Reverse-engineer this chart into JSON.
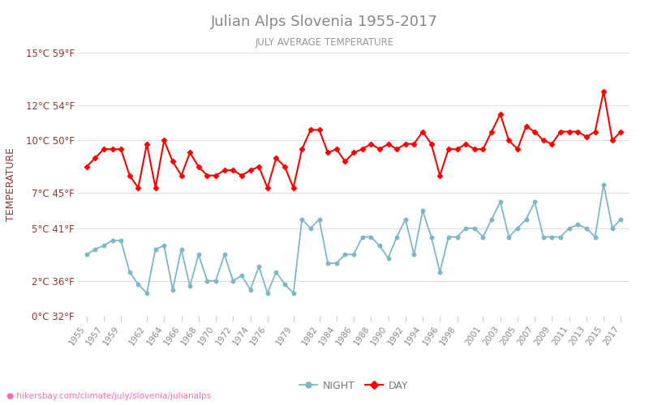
{
  "title": "Julian Alps Slovenia 1955-2017",
  "subtitle": "JULY AVERAGE TEMPERATURE",
  "ylabel": "TEMPERATURE",
  "footer": "hikersbay.com/climate/july/slovenia/julianalps",
  "title_color": "#888888",
  "subtitle_color": "#888888",
  "ylabel_color": "#993333",
  "background_color": "#ffffff",
  "grid_color": "#dddddd",
  "years": [
    1955,
    1956,
    1957,
    1958,
    1959,
    1960,
    1961,
    1962,
    1963,
    1964,
    1965,
    1966,
    1967,
    1968,
    1969,
    1970,
    1971,
    1972,
    1973,
    1974,
    1975,
    1976,
    1977,
    1978,
    1979,
    1980,
    1981,
    1982,
    1983,
    1984,
    1985,
    1986,
    1987,
    1988,
    1989,
    1990,
    1991,
    1992,
    1993,
    1994,
    1995,
    1996,
    1997,
    1998,
    1999,
    2000,
    2001,
    2002,
    2003,
    2004,
    2005,
    2006,
    2007,
    2008,
    2009,
    2010,
    2011,
    2012,
    2013,
    2014,
    2015,
    2016,
    2017
  ],
  "day_data": [
    8.5,
    9.0,
    9.5,
    9.5,
    9.5,
    8.0,
    7.3,
    9.8,
    7.3,
    10.0,
    8.8,
    8.0,
    9.3,
    8.5,
    8.0,
    8.0,
    8.3,
    8.3,
    8.0,
    8.3,
    8.5,
    7.3,
    9.0,
    8.5,
    7.3,
    9.5,
    10.6,
    10.6,
    9.3,
    9.5,
    8.8,
    9.3,
    9.5,
    9.8,
    9.5,
    9.8,
    9.5,
    9.8,
    9.8,
    10.5,
    9.8,
    8.0,
    9.5,
    9.5,
    9.8,
    9.5,
    9.5,
    10.5,
    11.5,
    10.0,
    9.5,
    10.8,
    10.5,
    10.0,
    9.8,
    10.5,
    10.5,
    10.5,
    10.2,
    10.5,
    12.8,
    10.0,
    10.5
  ],
  "night_data": [
    3.5,
    3.8,
    4.0,
    4.3,
    4.3,
    2.5,
    1.8,
    1.3,
    3.8,
    4.0,
    1.5,
    3.8,
    1.7,
    3.5,
    2.0,
    2.0,
    3.5,
    2.0,
    2.3,
    1.5,
    2.8,
    1.3,
    2.5,
    1.8,
    1.3,
    5.5,
    5.0,
    5.5,
    3.0,
    3.0,
    3.5,
    3.5,
    4.5,
    4.5,
    4.0,
    3.3,
    4.5,
    5.5,
    3.5,
    6.0,
    4.5,
    2.5,
    4.5,
    4.5,
    5.0,
    5.0,
    4.5,
    5.5,
    6.5,
    4.5,
    5.0,
    5.5,
    6.5,
    4.5,
    4.5,
    4.5,
    5.0,
    5.2,
    5.0,
    4.5,
    7.5,
    5.0,
    5.5
  ],
  "day_color": "#ff0000",
  "night_color": "#7eb8c4",
  "ylim_min": 0,
  "ylim_max": 15,
  "yticks_c": [
    0,
    2,
    5,
    7,
    10,
    12,
    15
  ],
  "yticks_f": [
    32,
    36,
    41,
    45,
    50,
    54,
    59
  ],
  "xtick_years": [
    1955,
    1957,
    1959,
    1962,
    1964,
    1966,
    1968,
    1970,
    1972,
    1974,
    1976,
    1979,
    1982,
    1984,
    1986,
    1988,
    1990,
    1992,
    1994,
    1996,
    1998,
    2001,
    2003,
    2005,
    2007,
    2009,
    2011,
    2013,
    2015,
    2017
  ],
  "legend_night_label": "NIGHT",
  "legend_day_label": "DAY"
}
